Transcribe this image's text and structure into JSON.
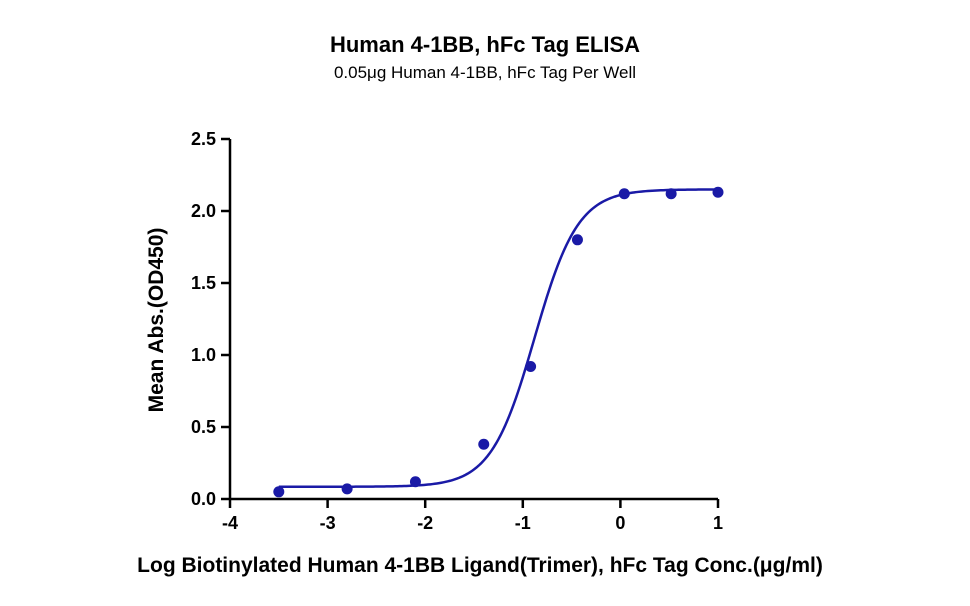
{
  "chart_data": {
    "type": "scatter",
    "title": "Human 4-1BB, hFc Tag ELISA",
    "subtitle": "0.05μg Human 4-1BB, hFc Tag Per Well",
    "xlabel": "Log Biotinylated Human 4-1BB Ligand(Trimer), hFc Tag Conc.(μg/ml)",
    "ylabel": "Mean Abs.(OD450)",
    "xlim": [
      -4,
      1
    ],
    "ylim": [
      0,
      2.5
    ],
    "xticks": [
      "-4",
      "-3",
      "-2",
      "-1",
      "0",
      "1"
    ],
    "yticks": [
      "0.0",
      "0.5",
      "1.0",
      "1.5",
      "2.0",
      "2.5"
    ],
    "grid": false,
    "colors": {
      "series": "#1a1aa6",
      "axis": "#000000"
    },
    "series": [
      {
        "x": [
          -3.5,
          -2.8,
          -2.1,
          -1.4,
          -0.92,
          -0.44,
          0.04,
          0.52,
          1.0
        ],
        "y": [
          0.05,
          0.07,
          0.12,
          0.38,
          0.92,
          1.8,
          2.12,
          2.12,
          2.13
        ],
        "fit": "sigmoidal"
      }
    ]
  }
}
